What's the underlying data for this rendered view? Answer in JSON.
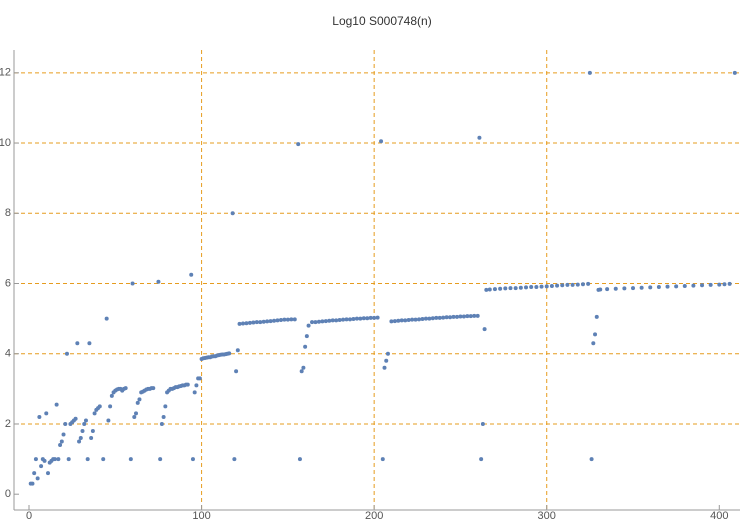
{
  "chart_data": {
    "type": "scatter",
    "title": "Log10 S000748(n)",
    "x": [
      1,
      2,
      3,
      4,
      5,
      6,
      7,
      8,
      9,
      10,
      11,
      12,
      13,
      14,
      15,
      16,
      17,
      18,
      19,
      20,
      21,
      22,
      23,
      24,
      25,
      26,
      27,
      28,
      29,
      30,
      31,
      32,
      33,
      34,
      35,
      36,
      37,
      38,
      39,
      40,
      41,
      43,
      45,
      46,
      47,
      48,
      49,
      50,
      51,
      52,
      53,
      54,
      55,
      56,
      59,
      60,
      61,
      62,
      63,
      64,
      65,
      66,
      67,
      68,
      69,
      70,
      71,
      72,
      75,
      76,
      77,
      78,
      79,
      80,
      81,
      82,
      83,
      84,
      85,
      86,
      87,
      88,
      89,
      90,
      91,
      92,
      94,
      95,
      96,
      97,
      98,
      99,
      100,
      101,
      102,
      103,
      104,
      105,
      106,
      107,
      108,
      109,
      110,
      111,
      112,
      113,
      114,
      115,
      116,
      118,
      119,
      120,
      121,
      122,
      124,
      126,
      128,
      130,
      132,
      134,
      136,
      138,
      140,
      142,
      144,
      146,
      148,
      150,
      152,
      154,
      156,
      157,
      158,
      159,
      160,
      161,
      162,
      164,
      166,
      168,
      170,
      172,
      174,
      176,
      178,
      180,
      182,
      184,
      186,
      188,
      190,
      192,
      194,
      196,
      198,
      200,
      202,
      204,
      205,
      206,
      207,
      208,
      210,
      212,
      214,
      216,
      218,
      220,
      222,
      224,
      226,
      228,
      230,
      232,
      234,
      236,
      238,
      240,
      242,
      244,
      246,
      248,
      250,
      252,
      254,
      256,
      258,
      260,
      261,
      262,
      263,
      264,
      265,
      267,
      270,
      273,
      276,
      279,
      282,
      285,
      288,
      291,
      294,
      297,
      300,
      303,
      306,
      309,
      312,
      315,
      318,
      321,
      324,
      325,
      326,
      327,
      328,
      329,
      330,
      331,
      335,
      340,
      345,
      350,
      355,
      360,
      365,
      370,
      375,
      380,
      385,
      390,
      395,
      400,
      403,
      406,
      409
    ],
    "values": [
      0.3,
      0.3,
      0.6,
      1.0,
      0.45,
      2.2,
      0.8,
      1.0,
      0.95,
      2.3,
      0.6,
      0.9,
      0.95,
      1.0,
      1.0,
      2.55,
      1.0,
      1.4,
      1.5,
      1.7,
      2.0,
      4.0,
      1.0,
      2.0,
      2.05,
      2.1,
      2.15,
      4.3,
      1.5,
      1.6,
      1.8,
      2.0,
      2.1,
      1.0,
      4.3,
      1.6,
      1.8,
      2.3,
      2.4,
      2.45,
      2.5,
      1.0,
      5.0,
      2.1,
      2.5,
      2.8,
      2.9,
      2.95,
      2.98,
      3.0,
      3.0,
      2.95,
      3.0,
      3.02,
      1.0,
      6.0,
      2.2,
      2.3,
      2.6,
      2.7,
      2.9,
      2.92,
      2.95,
      2.98,
      3.0,
      3.0,
      3.02,
      3.02,
      6.05,
      1.0,
      2.0,
      2.2,
      2.5,
      2.9,
      2.95,
      3.0,
      3.0,
      3.02,
      3.05,
      3.05,
      3.07,
      3.08,
      3.1,
      3.1,
      3.12,
      3.12,
      6.25,
      1.0,
      2.9,
      3.1,
      3.3,
      3.3,
      3.85,
      3.87,
      3.88,
      3.89,
      3.9,
      3.9,
      3.92,
      3.93,
      3.93,
      3.95,
      3.96,
      3.97,
      3.98,
      3.98,
      3.99,
      4.0,
      4.01,
      8.0,
      1.0,
      3.5,
      4.1,
      4.85,
      4.86,
      4.87,
      4.88,
      4.89,
      4.9,
      4.9,
      4.91,
      4.92,
      4.93,
      4.94,
      4.95,
      4.96,
      4.97,
      4.97,
      4.98,
      4.98,
      9.97,
      1.0,
      3.5,
      3.6,
      4.2,
      4.5,
      4.8,
      4.9,
      4.9,
      4.91,
      4.92,
      4.93,
      4.94,
      4.95,
      4.95,
      4.96,
      4.97,
      4.98,
      4.98,
      4.99,
      5.0,
      5.0,
      5.01,
      5.01,
      5.02,
      5.02,
      5.03,
      10.05,
      1.0,
      3.6,
      3.8,
      4.0,
      4.92,
      4.93,
      4.94,
      4.95,
      4.95,
      4.96,
      4.97,
      4.97,
      4.98,
      4.99,
      5.0,
      5.0,
      5.01,
      5.02,
      5.02,
      5.03,
      5.04,
      5.04,
      5.05,
      5.05,
      5.06,
      5.06,
      5.07,
      5.07,
      5.08,
      5.08,
      10.15,
      1.0,
      2.0,
      4.7,
      5.82,
      5.83,
      5.84,
      5.85,
      5.86,
      5.87,
      5.87,
      5.88,
      5.89,
      5.9,
      5.9,
      5.91,
      5.92,
      5.93,
      5.94,
      5.95,
      5.96,
      5.96,
      5.97,
      5.98,
      5.99,
      12.0,
      1.0,
      4.3,
      4.55,
      5.05,
      5.82,
      5.83,
      5.84,
      5.85,
      5.86,
      5.87,
      5.88,
      5.89,
      5.9,
      5.91,
      5.92,
      5.93,
      5.94,
      5.95,
      5.96,
      5.97,
      5.98,
      5.99,
      12.0
    ],
    "color": "#5e81b5",
    "grid_color": "#e69c1f",
    "xlim": [
      -8.7,
      412
    ],
    "ylim": [
      -0.45,
      12.65
    ],
    "xticks": [
      0,
      100,
      200,
      300,
      400
    ],
    "yticks": [
      0,
      2,
      4,
      6,
      8,
      10,
      12
    ],
    "xgrid": [
      100,
      200,
      300
    ],
    "ygrid": [
      2,
      4,
      6,
      8,
      10,
      12
    ]
  }
}
